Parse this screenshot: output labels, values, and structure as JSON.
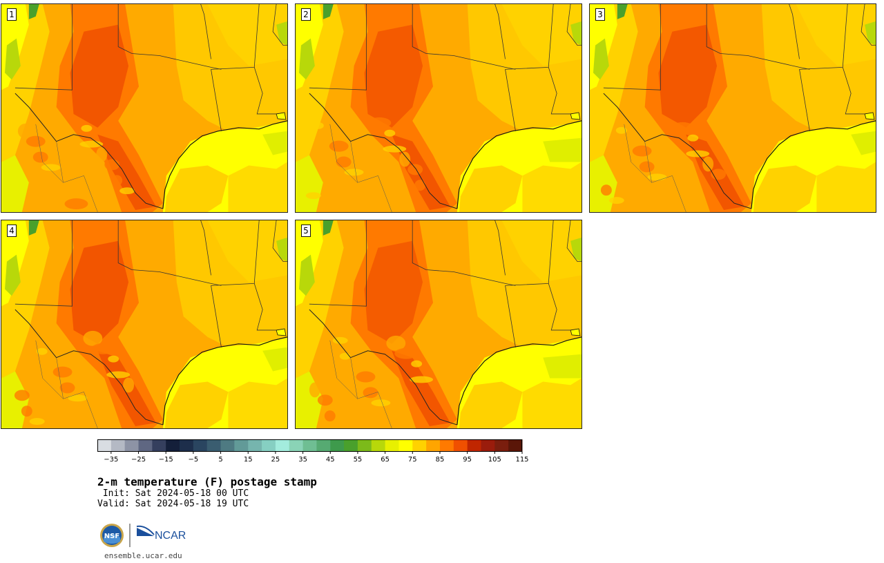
{
  "panels": [
    {
      "label": "1",
      "variant": 0.1
    },
    {
      "label": "2",
      "variant": 0.35
    },
    {
      "label": "3",
      "variant": 0.2
    },
    {
      "label": "4",
      "variant": 0.05
    },
    {
      "label": "5",
      "variant": 0.5
    }
  ],
  "colorbar": {
    "colors": [
      "#d9dde2",
      "#b4b9c4",
      "#8d93a5",
      "#5f6782",
      "#353f5e",
      "#141f3a",
      "#1d2e4b",
      "#2a4560",
      "#3a5d70",
      "#4e7a82",
      "#629a98",
      "#76b5ae",
      "#86cfc2",
      "#a3ecdd",
      "#8ad3b6",
      "#6fbe93",
      "#56aa72",
      "#3e9a4c",
      "#4aa02c",
      "#7cba1a",
      "#b8d80a",
      "#e8f000",
      "#ffff00",
      "#ffd200",
      "#ffa500",
      "#ff7a00",
      "#f05000",
      "#c02600",
      "#9a1c0c",
      "#7a1e0e",
      "#5a1608"
    ],
    "ticks": [
      "−35",
      "−25",
      "−15",
      "−5",
      "5",
      "15",
      "25",
      "35",
      "45",
      "55",
      "65",
      "75",
      "85",
      "95",
      "105",
      "115"
    ]
  },
  "text": {
    "title": "2-m temperature (F) postage stamp",
    "init": " Init: Sat 2024-05-18 00 UTC",
    "valid": "Valid: Sat 2024-05-18 19 UTC",
    "logo_nsf": "NSF",
    "logo_ncar": "NCAR",
    "website": "ensemble.ucar.edu"
  }
}
